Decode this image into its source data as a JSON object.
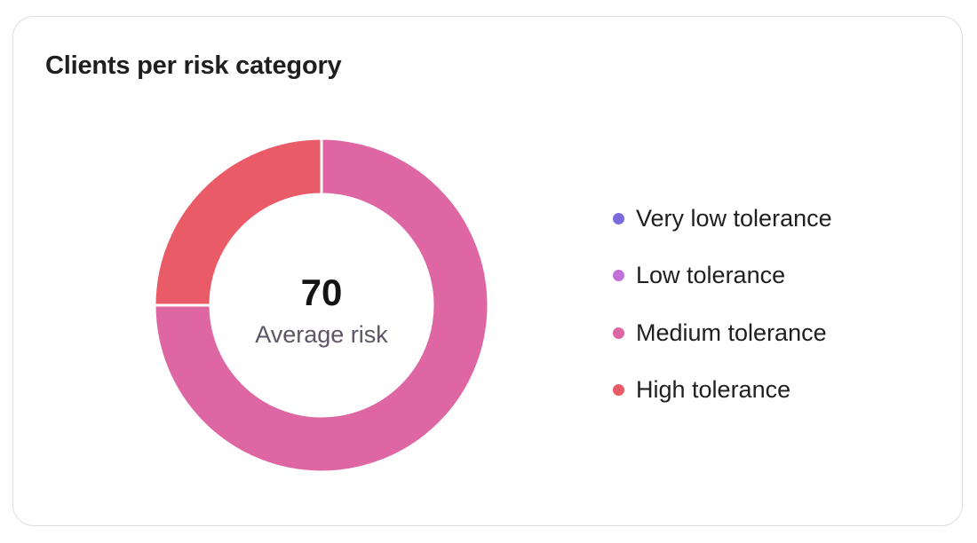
{
  "card": {
    "title": "Clients per risk category",
    "center_value": "70",
    "center_label": "Average risk"
  },
  "chart_data": {
    "type": "pie",
    "title": "Clients per risk category",
    "categories": [
      "Very low tolerance",
      "Low tolerance",
      "Medium tolerance",
      "High tolerance"
    ],
    "values": [
      0,
      0,
      75,
      25
    ],
    "colors": [
      "#7a6bdc",
      "#c36fd9",
      "#dd66a3",
      "#e85b67"
    ],
    "center_value": 70,
    "center_label": "Average risk",
    "legend_placement": "right"
  }
}
